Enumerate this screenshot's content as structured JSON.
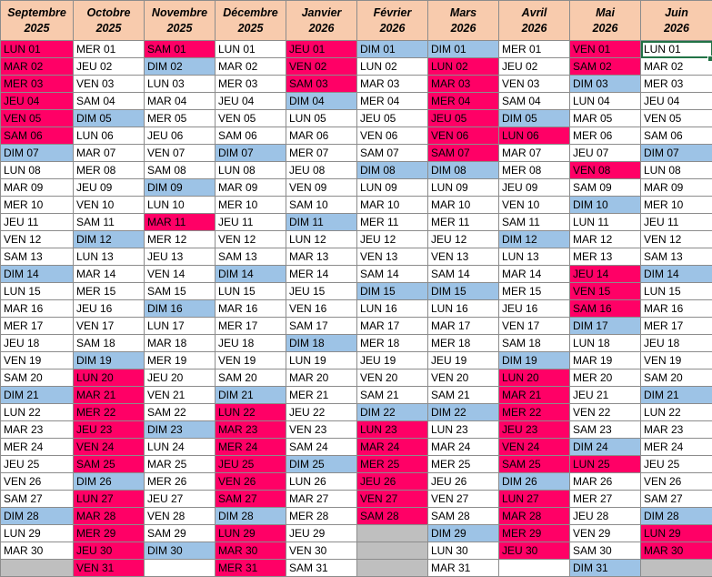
{
  "columns": [
    {
      "month": "Septembre",
      "year": "2025",
      "days": [
        [
          "LUN 01",
          "red"
        ],
        [
          "MAR 02",
          "red"
        ],
        [
          "MER 03",
          "red"
        ],
        [
          "JEU 04",
          "red"
        ],
        [
          "VEN 05",
          "red"
        ],
        [
          "SAM 06",
          "red"
        ],
        [
          "DIM 07",
          "blue"
        ],
        [
          "LUN 08",
          "white"
        ],
        [
          "MAR 09",
          "white"
        ],
        [
          "MER 10",
          "white"
        ],
        [
          "JEU 11",
          "white"
        ],
        [
          "VEN 12",
          "white"
        ],
        [
          "SAM 13",
          "white"
        ],
        [
          "DIM 14",
          "blue"
        ],
        [
          "LUN 15",
          "white"
        ],
        [
          "MAR 16",
          "white"
        ],
        [
          "MER 17",
          "white"
        ],
        [
          "JEU 18",
          "white"
        ],
        [
          "VEN 19",
          "white"
        ],
        [
          "SAM 20",
          "white"
        ],
        [
          "DIM 21",
          "blue"
        ],
        [
          "LUN 22",
          "white"
        ],
        [
          "MAR 23",
          "white"
        ],
        [
          "MER 24",
          "white"
        ],
        [
          "JEU 25",
          "white"
        ],
        [
          "VEN 26",
          "white"
        ],
        [
          "SAM 27",
          "white"
        ],
        [
          "DIM 28",
          "blue"
        ],
        [
          "LUN 29",
          "white"
        ],
        [
          "MAR 30",
          "white"
        ],
        [
          "",
          "gray"
        ]
      ]
    },
    {
      "month": "Octobre",
      "year": "2025",
      "days": [
        [
          "MER 01",
          "white"
        ],
        [
          "JEU 02",
          "white"
        ],
        [
          "VEN 03",
          "white"
        ],
        [
          "SAM 04",
          "white"
        ],
        [
          "DIM 05",
          "blue"
        ],
        [
          "LUN 06",
          "white"
        ],
        [
          "MAR 07",
          "white"
        ],
        [
          "MER 08",
          "white"
        ],
        [
          "JEU 09",
          "white"
        ],
        [
          "VEN 10",
          "white"
        ],
        [
          "SAM 11",
          "white"
        ],
        [
          "DIM 12",
          "blue"
        ],
        [
          "LUN 13",
          "white"
        ],
        [
          "MAR 14",
          "white"
        ],
        [
          "MER 15",
          "white"
        ],
        [
          "JEU 16",
          "white"
        ],
        [
          "VEN 17",
          "white"
        ],
        [
          "SAM 18",
          "white"
        ],
        [
          "DIM 19",
          "blue"
        ],
        [
          "LUN 20",
          "red"
        ],
        [
          "MAR 21",
          "red"
        ],
        [
          "MER 22",
          "red"
        ],
        [
          "JEU 23",
          "red"
        ],
        [
          "VEN 24",
          "red"
        ],
        [
          "SAM 25",
          "red"
        ],
        [
          "DIM 26",
          "blue"
        ],
        [
          "LUN 27",
          "red"
        ],
        [
          "MAR 28",
          "red"
        ],
        [
          "MER 29",
          "red"
        ],
        [
          "JEU 30",
          "red"
        ],
        [
          "VEN 31",
          "red"
        ]
      ]
    },
    {
      "month": "Novembre",
      "year": "2025",
      "days": [
        [
          "SAM 01",
          "red"
        ],
        [
          "DIM 02",
          "blue"
        ],
        [
          "LUN 03",
          "white"
        ],
        [
          "MAR 04",
          "white"
        ],
        [
          "MER 05",
          "white"
        ],
        [
          "JEU 06",
          "white"
        ],
        [
          "VEN 07",
          "white"
        ],
        [
          "SAM 08",
          "white"
        ],
        [
          "DIM 09",
          "blue"
        ],
        [
          "LUN 10",
          "white"
        ],
        [
          "MAR 11",
          "red"
        ],
        [
          "MER 12",
          "white"
        ],
        [
          "JEU 13",
          "white"
        ],
        [
          "VEN 14",
          "white"
        ],
        [
          "SAM 15",
          "white"
        ],
        [
          "DIM 16",
          "blue"
        ],
        [
          "LUN 17",
          "white"
        ],
        [
          "MAR 18",
          "white"
        ],
        [
          "MER 19",
          "white"
        ],
        [
          "JEU 20",
          "white"
        ],
        [
          "VEN 21",
          "white"
        ],
        [
          "SAM 22",
          "white"
        ],
        [
          "DIM 23",
          "blue"
        ],
        [
          "LUN 24",
          "white"
        ],
        [
          "MAR 25",
          "white"
        ],
        [
          "MER 26",
          "white"
        ],
        [
          "JEU 27",
          "white"
        ],
        [
          "VEN 28",
          "white"
        ],
        [
          "SAM 29",
          "white"
        ],
        [
          "DIM 30",
          "blue"
        ],
        [
          "",
          "white"
        ]
      ]
    },
    {
      "month": "Décembre",
      "year": "2025",
      "days": [
        [
          "LUN 01",
          "white"
        ],
        [
          "MAR 02",
          "white"
        ],
        [
          "MER 03",
          "white"
        ],
        [
          "JEU 04",
          "white"
        ],
        [
          "VEN 05",
          "white"
        ],
        [
          "SAM 06",
          "white"
        ],
        [
          "DIM 07",
          "blue"
        ],
        [
          "LUN 08",
          "white"
        ],
        [
          "MAR 09",
          "white"
        ],
        [
          "MER 10",
          "white"
        ],
        [
          "JEU 11",
          "white"
        ],
        [
          "VEN 12",
          "white"
        ],
        [
          "SAM 13",
          "white"
        ],
        [
          "DIM 14",
          "blue"
        ],
        [
          "LUN 15",
          "white"
        ],
        [
          "MAR 16",
          "white"
        ],
        [
          "MER 17",
          "white"
        ],
        [
          "JEU 18",
          "white"
        ],
        [
          "VEN 19",
          "white"
        ],
        [
          "SAM 20",
          "white"
        ],
        [
          "DIM 21",
          "blue"
        ],
        [
          "LUN 22",
          "red"
        ],
        [
          "MAR 23",
          "red"
        ],
        [
          "MER 24",
          "red"
        ],
        [
          "JEU 25",
          "red"
        ],
        [
          "VEN 26",
          "red"
        ],
        [
          "SAM 27",
          "red"
        ],
        [
          "DIM 28",
          "blue"
        ],
        [
          "LUN 29",
          "red"
        ],
        [
          "MAR 30",
          "red"
        ],
        [
          "MER 31",
          "red"
        ]
      ]
    },
    {
      "month": "Janvier",
      "year": "2026",
      "days": [
        [
          "JEU 01",
          "red"
        ],
        [
          "VEN 02",
          "red"
        ],
        [
          "SAM 03",
          "red"
        ],
        [
          "DIM 04",
          "blue"
        ],
        [
          "LUN 05",
          "white"
        ],
        [
          "MAR 06",
          "white"
        ],
        [
          "MER 07",
          "white"
        ],
        [
          "JEU 08",
          "white"
        ],
        [
          "VEN 09",
          "white"
        ],
        [
          "SAM 10",
          "white"
        ],
        [
          "DIM 11",
          "blue"
        ],
        [
          "LUN 12",
          "white"
        ],
        [
          "MAR 13",
          "white"
        ],
        [
          "MER 14",
          "white"
        ],
        [
          "JEU 15",
          "white"
        ],
        [
          "VEN 16",
          "white"
        ],
        [
          "SAM 17",
          "white"
        ],
        [
          "DIM 18",
          "blue"
        ],
        [
          "LUN 19",
          "white"
        ],
        [
          "MAR 20",
          "white"
        ],
        [
          "MER 21",
          "white"
        ],
        [
          "JEU 22",
          "white"
        ],
        [
          "VEN 23",
          "white"
        ],
        [
          "SAM 24",
          "white"
        ],
        [
          "DIM 25",
          "blue"
        ],
        [
          "LUN 26",
          "white"
        ],
        [
          "MAR 27",
          "white"
        ],
        [
          "MER 28",
          "white"
        ],
        [
          "JEU 29",
          "white"
        ],
        [
          "VEN 30",
          "white"
        ],
        [
          "SAM 31",
          "white"
        ]
      ]
    },
    {
      "month": "Février",
      "year": "2026",
      "days": [
        [
          "DIM 01",
          "blue"
        ],
        [
          "LUN 02",
          "white"
        ],
        [
          "MAR 03",
          "white"
        ],
        [
          "MER 04",
          "white"
        ],
        [
          "JEU 05",
          "white"
        ],
        [
          "VEN 06",
          "white"
        ],
        [
          "SAM 07",
          "white"
        ],
        [
          "DIM 08",
          "blue"
        ],
        [
          "LUN 09",
          "white"
        ],
        [
          "MAR 10",
          "white"
        ],
        [
          "MER 11",
          "white"
        ],
        [
          "JEU 12",
          "white"
        ],
        [
          "VEN 13",
          "white"
        ],
        [
          "SAM 14",
          "white"
        ],
        [
          "DIM 15",
          "blue"
        ],
        [
          "LUN 16",
          "white"
        ],
        [
          "MAR 17",
          "white"
        ],
        [
          "MER 18",
          "white"
        ],
        [
          "JEU 19",
          "white"
        ],
        [
          "VEN 20",
          "white"
        ],
        [
          "SAM 21",
          "white"
        ],
        [
          "DIM 22",
          "blue"
        ],
        [
          "LUN 23",
          "red"
        ],
        [
          "MAR 24",
          "red"
        ],
        [
          "MER 25",
          "red"
        ],
        [
          "JEU 26",
          "red"
        ],
        [
          "VEN 27",
          "red"
        ],
        [
          "SAM 28",
          "red"
        ],
        [
          "",
          "gray"
        ],
        [
          "",
          "gray"
        ],
        [
          "",
          "gray"
        ]
      ]
    },
    {
      "month": "Mars",
      "year": "2026",
      "days": [
        [
          "DIM 01",
          "blue"
        ],
        [
          "LUN 02",
          "red"
        ],
        [
          "MAR 03",
          "red"
        ],
        [
          "MER 04",
          "red"
        ],
        [
          "JEU 05",
          "red"
        ],
        [
          "VEN 06",
          "red"
        ],
        [
          "SAM 07",
          "red"
        ],
        [
          "DIM 08",
          "blue"
        ],
        [
          "LUN 09",
          "white"
        ],
        [
          "MAR 10",
          "white"
        ],
        [
          "MER 11",
          "white"
        ],
        [
          "JEU 12",
          "white"
        ],
        [
          "VEN 13",
          "white"
        ],
        [
          "SAM 14",
          "white"
        ],
        [
          "DIM 15",
          "blue"
        ],
        [
          "LUN 16",
          "white"
        ],
        [
          "MAR 17",
          "white"
        ],
        [
          "MER 18",
          "white"
        ],
        [
          "JEU 19",
          "white"
        ],
        [
          "VEN 20",
          "white"
        ],
        [
          "SAM 21",
          "white"
        ],
        [
          "DIM 22",
          "blue"
        ],
        [
          "LUN 23",
          "white"
        ],
        [
          "MAR 24",
          "white"
        ],
        [
          "MER 25",
          "white"
        ],
        [
          "JEU 26",
          "white"
        ],
        [
          "VEN 27",
          "white"
        ],
        [
          "SAM 28",
          "white"
        ],
        [
          "DIM 29",
          "blue"
        ],
        [
          "LUN 30",
          "white"
        ],
        [
          "MAR 31",
          "white"
        ]
      ]
    },
    {
      "month": "Avril",
      "year": "2026",
      "days": [
        [
          "MER 01",
          "white"
        ],
        [
          "JEU 02",
          "white"
        ],
        [
          "VEN 03",
          "white"
        ],
        [
          "SAM 04",
          "white"
        ],
        [
          "DIM 05",
          "blue"
        ],
        [
          "LUN 06",
          "red"
        ],
        [
          "MAR 07",
          "white"
        ],
        [
          "MER 08",
          "white"
        ],
        [
          "JEU 09",
          "white"
        ],
        [
          "VEN 10",
          "white"
        ],
        [
          "SAM 11",
          "white"
        ],
        [
          "DIM 12",
          "blue"
        ],
        [
          "LUN 13",
          "white"
        ],
        [
          "MAR 14",
          "white"
        ],
        [
          "MER 15",
          "white"
        ],
        [
          "JEU 16",
          "white"
        ],
        [
          "VEN 17",
          "white"
        ],
        [
          "SAM 18",
          "white"
        ],
        [
          "DIM 19",
          "blue"
        ],
        [
          "LUN 20",
          "red"
        ],
        [
          "MAR 21",
          "red"
        ],
        [
          "MER 22",
          "red"
        ],
        [
          "JEU 23",
          "red"
        ],
        [
          "VEN 24",
          "red"
        ],
        [
          "SAM 25",
          "red"
        ],
        [
          "DIM 26",
          "blue"
        ],
        [
          "LUN 27",
          "red"
        ],
        [
          "MAR 28",
          "red"
        ],
        [
          "MER 29",
          "red"
        ],
        [
          "JEU 30",
          "red"
        ],
        [
          "",
          "white"
        ]
      ]
    },
    {
      "month": "Mai",
      "year": "2026",
      "days": [
        [
          "VEN 01",
          "red"
        ],
        [
          "SAM 02",
          "red"
        ],
        [
          "DIM 03",
          "blue"
        ],
        [
          "LUN 04",
          "white"
        ],
        [
          "MAR 05",
          "white"
        ],
        [
          "MER 06",
          "white"
        ],
        [
          "JEU 07",
          "white"
        ],
        [
          "VEN 08",
          "red"
        ],
        [
          "SAM 09",
          "white"
        ],
        [
          "DIM 10",
          "blue"
        ],
        [
          "LUN 11",
          "white"
        ],
        [
          "MAR 12",
          "white"
        ],
        [
          "MER 13",
          "white"
        ],
        [
          "JEU 14",
          "red"
        ],
        [
          "VEN 15",
          "red"
        ],
        [
          "SAM 16",
          "red"
        ],
        [
          "DIM 17",
          "blue"
        ],
        [
          "LUN 18",
          "white"
        ],
        [
          "MAR 19",
          "white"
        ],
        [
          "MER 20",
          "white"
        ],
        [
          "JEU 21",
          "white"
        ],
        [
          "VEN 22",
          "white"
        ],
        [
          "SAM 23",
          "white"
        ],
        [
          "DIM 24",
          "blue"
        ],
        [
          "LUN 25",
          "red"
        ],
        [
          "MAR 26",
          "white"
        ],
        [
          "MER 27",
          "white"
        ],
        [
          "JEU 28",
          "white"
        ],
        [
          "VEN 29",
          "white"
        ],
        [
          "SAM 30",
          "white"
        ],
        [
          "DIM 31",
          "blue"
        ]
      ]
    },
    {
      "month": "Juin",
      "year": "2026",
      "days": [
        [
          "LUN 01",
          "white"
        ],
        [
          "MAR 02",
          "white"
        ],
        [
          "MER 03",
          "white"
        ],
        [
          "JEU 04",
          "white"
        ],
        [
          "VEN 05",
          "white"
        ],
        [
          "SAM 06",
          "white"
        ],
        [
          "DIM 07",
          "blue"
        ],
        [
          "LUN 08",
          "white"
        ],
        [
          "MAR 09",
          "white"
        ],
        [
          "MER 10",
          "white"
        ],
        [
          "JEU 11",
          "white"
        ],
        [
          "VEN 12",
          "white"
        ],
        [
          "SAM 13",
          "white"
        ],
        [
          "DIM 14",
          "blue"
        ],
        [
          "LUN 15",
          "white"
        ],
        [
          "MAR 16",
          "white"
        ],
        [
          "MER 17",
          "white"
        ],
        [
          "JEU 18",
          "white"
        ],
        [
          "VEN 19",
          "white"
        ],
        [
          "SAM 20",
          "white"
        ],
        [
          "DIM 21",
          "blue"
        ],
        [
          "LUN 22",
          "white"
        ],
        [
          "MAR 23",
          "white"
        ],
        [
          "MER 24",
          "white"
        ],
        [
          "JEU 25",
          "white"
        ],
        [
          "VEN 26",
          "white"
        ],
        [
          "SAM 27",
          "white"
        ],
        [
          "DIM 28",
          "blue"
        ],
        [
          "LUN 29",
          "red"
        ],
        [
          "MAR 30",
          "red"
        ],
        [
          "",
          "gray"
        ]
      ]
    }
  ],
  "colors": {
    "header": "#f8cbad",
    "holiday": "#ff0066",
    "sunday": "#9dc3e6",
    "empty": "#bfbfbf",
    "grid": "#8c8c8c"
  },
  "selection": {
    "column": 9,
    "row": 0
  }
}
